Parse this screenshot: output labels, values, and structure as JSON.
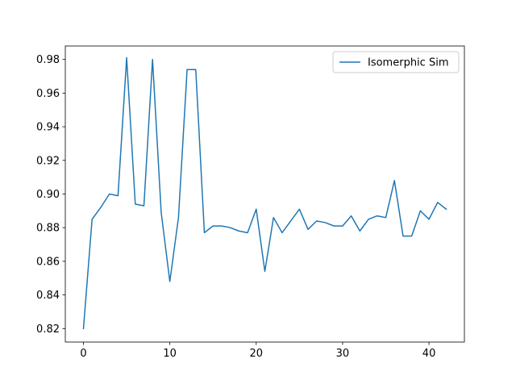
{
  "chart_data": {
    "type": "line",
    "title": "",
    "xlabel": "",
    "ylabel": "",
    "xlim": [
      -2.1,
      44.1
    ],
    "ylim": [
      0.812,
      0.988
    ],
    "x_ticks": [
      0,
      10,
      20,
      30,
      40
    ],
    "x_tick_labels": [
      "0",
      "10",
      "20",
      "30",
      "40"
    ],
    "y_ticks": [
      0.82,
      0.84,
      0.86,
      0.88,
      0.9,
      0.92,
      0.94,
      0.96,
      0.98
    ],
    "y_tick_labels": [
      "0.82",
      "0.84",
      "0.86",
      "0.88",
      "0.90",
      "0.92",
      "0.94",
      "0.96",
      "0.98"
    ],
    "grid": false,
    "legend_position": "top-right",
    "series": [
      {
        "name": "Isomerphic Sim",
        "color": "#1f77b4",
        "x": [
          0,
          1,
          2,
          3,
          4,
          5,
          6,
          7,
          8,
          9,
          10,
          11,
          12,
          13,
          14,
          15,
          16,
          17,
          18,
          19,
          20,
          21,
          22,
          23,
          24,
          25,
          26,
          27,
          28,
          29,
          30,
          31,
          32,
          33,
          34,
          35,
          36,
          37,
          38,
          39,
          40,
          41,
          42
        ],
        "values": [
          0.82,
          0.885,
          0.892,
          0.9,
          0.899,
          0.981,
          0.894,
          0.893,
          0.98,
          0.889,
          0.848,
          0.886,
          0.974,
          0.974,
          0.877,
          0.881,
          0.881,
          0.88,
          0.878,
          0.877,
          0.891,
          0.854,
          0.886,
          0.877,
          0.884,
          0.891,
          0.879,
          0.884,
          0.883,
          0.881,
          0.881,
          0.887,
          0.878,
          0.885,
          0.887,
          0.886,
          0.908,
          0.875,
          0.875,
          0.89,
          0.885,
          0.895,
          0.891
        ]
      }
    ]
  }
}
